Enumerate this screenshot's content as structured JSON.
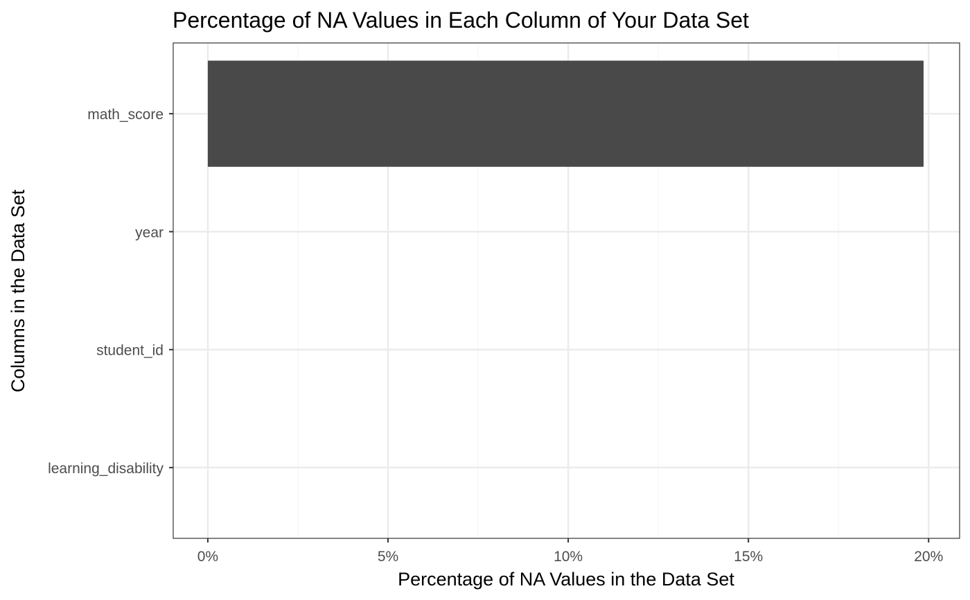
{
  "chart_data": {
    "type": "bar",
    "orientation": "horizontal",
    "title": "Percentage of NA Values in Each Column of Your Data Set",
    "xlabel": "Percentage of NA Values in the Data Set",
    "ylabel": "Columns in the Data Set",
    "categories": [
      "math_score",
      "year",
      "student_id",
      "learning_disability"
    ],
    "values": [
      19.86,
      0,
      0,
      0
    ],
    "value_unit": "%",
    "xlim": [
      -0.96,
      20.86
    ],
    "x_ticks": [
      0,
      5,
      10,
      15,
      20
    ],
    "x_tick_labels": [
      "0%",
      "5%",
      "10%",
      "15%",
      "20%"
    ],
    "grid": true,
    "legend": "none",
    "colors": {
      "bar": "#494949",
      "grid_major": "#ebebeb",
      "grid_minor": "#f5f5f5",
      "panel_border": "#333333",
      "tick_label": "#4d4d4d",
      "text": "#000000"
    }
  }
}
